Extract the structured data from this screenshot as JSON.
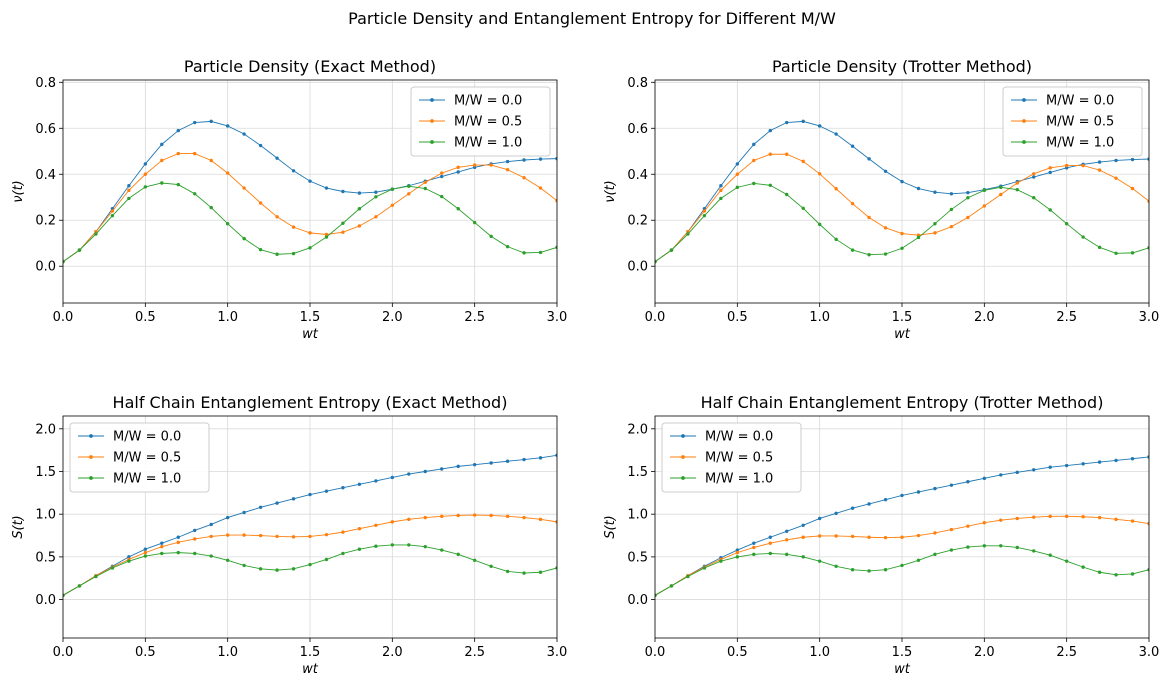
{
  "figure": {
    "suptitle": "Particle Density and Entanglement Entropy for Different M/W"
  },
  "chart_data": [
    {
      "type": "line",
      "title": "Particle Density (Exact Method)",
      "xlabel": "wt",
      "ylabel": "ν(t)",
      "xlim": [
        0,
        3.0
      ],
      "ylim": [
        -0.16,
        0.81
      ],
      "xticks": [
        "0.0",
        "0.5",
        "1.0",
        "1.5",
        "2.0",
        "2.5",
        "3.0"
      ],
      "yticks": [
        "0.0",
        "0.2",
        "0.4",
        "0.6",
        "0.8"
      ],
      "grid": true,
      "legend": "top-right",
      "x": [
        0,
        0.1,
        0.2,
        0.3,
        0.4,
        0.5,
        0.6,
        0.7,
        0.8,
        0.9,
        1.0,
        1.1,
        1.2,
        1.3,
        1.4,
        1.5,
        1.6,
        1.7,
        1.8,
        1.9,
        2.0,
        2.1,
        2.2,
        2.3,
        2.4,
        2.5,
        2.6,
        2.7,
        2.8,
        2.9,
        3.0
      ],
      "series": [
        {
          "name": "M/W = 0.0",
          "color": "#1f77b4",
          "values": [
            0.02,
            0.07,
            0.15,
            0.25,
            0.35,
            0.445,
            0.53,
            0.59,
            0.625,
            0.63,
            0.61,
            0.575,
            0.525,
            0.47,
            0.415,
            0.37,
            0.34,
            0.325,
            0.318,
            0.322,
            0.335,
            0.35,
            0.37,
            0.39,
            0.41,
            0.43,
            0.445,
            0.455,
            0.462,
            0.466,
            0.468
          ]
        },
        {
          "name": "M/W = 0.5",
          "color": "#ff7f0e",
          "values": [
            0.02,
            0.07,
            0.15,
            0.24,
            0.33,
            0.4,
            0.46,
            0.49,
            0.49,
            0.46,
            0.405,
            0.34,
            0.275,
            0.215,
            0.17,
            0.145,
            0.138,
            0.148,
            0.175,
            0.215,
            0.265,
            0.315,
            0.365,
            0.405,
            0.43,
            0.44,
            0.44,
            0.42,
            0.385,
            0.34,
            0.285
          ]
        },
        {
          "name": "M/W = 1.0",
          "color": "#2ca02c",
          "values": [
            0.02,
            0.07,
            0.14,
            0.22,
            0.295,
            0.345,
            0.362,
            0.355,
            0.315,
            0.255,
            0.185,
            0.12,
            0.072,
            0.052,
            0.055,
            0.08,
            0.127,
            0.187,
            0.25,
            0.302,
            0.335,
            0.348,
            0.338,
            0.303,
            0.25,
            0.19,
            0.13,
            0.085,
            0.058,
            0.06,
            0.082
          ]
        }
      ]
    },
    {
      "type": "line",
      "title": "Particle Density (Trotter Method)",
      "xlabel": "wt",
      "ylabel": "ν(t)",
      "xlim": [
        0,
        3.0
      ],
      "ylim": [
        -0.16,
        0.81
      ],
      "xticks": [
        "0.0",
        "0.5",
        "1.0",
        "1.5",
        "2.0",
        "2.5",
        "3.0"
      ],
      "yticks": [
        "0.0",
        "0.2",
        "0.4",
        "0.6",
        "0.8"
      ],
      "grid": true,
      "legend": "top-right",
      "x": [
        0,
        0.1,
        0.2,
        0.3,
        0.4,
        0.5,
        0.6,
        0.7,
        0.8,
        0.9,
        1.0,
        1.1,
        1.2,
        1.3,
        1.4,
        1.5,
        1.6,
        1.7,
        1.8,
        1.9,
        2.0,
        2.1,
        2.2,
        2.3,
        2.4,
        2.5,
        2.6,
        2.7,
        2.8,
        2.9,
        3.0
      ],
      "series": [
        {
          "name": "M/W = 0.0",
          "color": "#1f77b4",
          "values": [
            0.02,
            0.07,
            0.15,
            0.25,
            0.35,
            0.445,
            0.53,
            0.59,
            0.625,
            0.63,
            0.61,
            0.575,
            0.522,
            0.467,
            0.413,
            0.368,
            0.338,
            0.322,
            0.315,
            0.32,
            0.333,
            0.348,
            0.368,
            0.388,
            0.408,
            0.428,
            0.443,
            0.453,
            0.46,
            0.464,
            0.466
          ]
        },
        {
          "name": "M/W = 0.5",
          "color": "#ff7f0e",
          "values": [
            0.02,
            0.07,
            0.15,
            0.24,
            0.33,
            0.4,
            0.46,
            0.487,
            0.487,
            0.456,
            0.402,
            0.337,
            0.272,
            0.212,
            0.167,
            0.142,
            0.135,
            0.145,
            0.172,
            0.212,
            0.262,
            0.312,
            0.362,
            0.402,
            0.428,
            0.438,
            0.438,
            0.418,
            0.383,
            0.338,
            0.283
          ]
        },
        {
          "name": "M/W = 1.0",
          "color": "#2ca02c",
          "values": [
            0.02,
            0.07,
            0.14,
            0.22,
            0.295,
            0.343,
            0.36,
            0.352,
            0.312,
            0.252,
            0.182,
            0.117,
            0.07,
            0.05,
            0.053,
            0.078,
            0.125,
            0.185,
            0.247,
            0.298,
            0.33,
            0.343,
            0.333,
            0.298,
            0.245,
            0.185,
            0.127,
            0.082,
            0.056,
            0.058,
            0.08
          ]
        }
      ]
    },
    {
      "type": "line",
      "title": "Half Chain Entanglement Entropy (Exact Method)",
      "xlabel": "wt",
      "ylabel": "S(t)",
      "xlim": [
        0,
        3.0
      ],
      "ylim": [
        -0.45,
        2.15
      ],
      "xticks": [
        "0.0",
        "0.5",
        "1.0",
        "1.5",
        "2.0",
        "2.5",
        "3.0"
      ],
      "yticks": [
        "0.0",
        "0.5",
        "1.0",
        "1.5",
        "2.0"
      ],
      "grid": true,
      "legend": "top-left",
      "x": [
        0,
        0.1,
        0.2,
        0.3,
        0.4,
        0.5,
        0.6,
        0.7,
        0.8,
        0.9,
        1.0,
        1.1,
        1.2,
        1.3,
        1.4,
        1.5,
        1.6,
        1.7,
        1.8,
        1.9,
        2.0,
        2.1,
        2.2,
        2.3,
        2.4,
        2.5,
        2.6,
        2.7,
        2.8,
        2.9,
        3.0
      ],
      "series": [
        {
          "name": "M/W = 0.0",
          "color": "#1f77b4",
          "values": [
            0.05,
            0.16,
            0.28,
            0.39,
            0.5,
            0.59,
            0.66,
            0.73,
            0.81,
            0.88,
            0.96,
            1.02,
            1.08,
            1.13,
            1.18,
            1.23,
            1.27,
            1.31,
            1.35,
            1.39,
            1.43,
            1.47,
            1.5,
            1.53,
            1.56,
            1.58,
            1.6,
            1.62,
            1.64,
            1.66,
            1.69
          ]
        },
        {
          "name": "M/W = 0.5",
          "color": "#ff7f0e",
          "values": [
            0.05,
            0.16,
            0.28,
            0.38,
            0.47,
            0.55,
            0.62,
            0.67,
            0.71,
            0.74,
            0.755,
            0.755,
            0.75,
            0.74,
            0.735,
            0.74,
            0.76,
            0.79,
            0.83,
            0.87,
            0.91,
            0.94,
            0.96,
            0.975,
            0.985,
            0.99,
            0.985,
            0.975,
            0.96,
            0.94,
            0.91
          ]
        },
        {
          "name": "M/W = 1.0",
          "color": "#2ca02c",
          "values": [
            0.05,
            0.16,
            0.27,
            0.37,
            0.45,
            0.51,
            0.54,
            0.55,
            0.54,
            0.51,
            0.46,
            0.4,
            0.36,
            0.345,
            0.36,
            0.41,
            0.47,
            0.54,
            0.59,
            0.625,
            0.64,
            0.64,
            0.62,
            0.58,
            0.53,
            0.46,
            0.39,
            0.33,
            0.31,
            0.32,
            0.37
          ]
        }
      ]
    },
    {
      "type": "line",
      "title": "Half Chain Entanglement Entropy (Trotter Method)",
      "xlabel": "wt",
      "ylabel": "S(t)",
      "xlim": [
        0,
        3.0
      ],
      "ylim": [
        -0.45,
        2.15
      ],
      "xticks": [
        "0.0",
        "0.5",
        "1.0",
        "1.5",
        "2.0",
        "2.5",
        "3.0"
      ],
      "yticks": [
        "0.0",
        "0.5",
        "1.0",
        "1.5",
        "2.0"
      ],
      "grid": true,
      "legend": "top-left",
      "x": [
        0,
        0.1,
        0.2,
        0.3,
        0.4,
        0.5,
        0.6,
        0.7,
        0.8,
        0.9,
        1.0,
        1.1,
        1.2,
        1.3,
        1.4,
        1.5,
        1.6,
        1.7,
        1.8,
        1.9,
        2.0,
        2.1,
        2.2,
        2.3,
        2.4,
        2.5,
        2.6,
        2.7,
        2.8,
        2.9,
        3.0
      ],
      "series": [
        {
          "name": "M/W = 0.0",
          "color": "#1f77b4",
          "values": [
            0.05,
            0.16,
            0.28,
            0.39,
            0.49,
            0.58,
            0.66,
            0.73,
            0.8,
            0.87,
            0.95,
            1.01,
            1.07,
            1.12,
            1.17,
            1.22,
            1.26,
            1.3,
            1.34,
            1.38,
            1.42,
            1.46,
            1.49,
            1.52,
            1.55,
            1.57,
            1.59,
            1.61,
            1.63,
            1.65,
            1.67
          ]
        },
        {
          "name": "M/W = 0.5",
          "color": "#ff7f0e",
          "values": [
            0.05,
            0.16,
            0.28,
            0.38,
            0.47,
            0.55,
            0.61,
            0.66,
            0.7,
            0.73,
            0.745,
            0.745,
            0.74,
            0.73,
            0.725,
            0.73,
            0.75,
            0.78,
            0.82,
            0.86,
            0.9,
            0.93,
            0.95,
            0.965,
            0.975,
            0.975,
            0.97,
            0.96,
            0.94,
            0.92,
            0.89
          ]
        },
        {
          "name": "M/W = 1.0",
          "color": "#2ca02c",
          "values": [
            0.05,
            0.16,
            0.27,
            0.37,
            0.45,
            0.5,
            0.53,
            0.54,
            0.53,
            0.5,
            0.45,
            0.39,
            0.35,
            0.335,
            0.35,
            0.4,
            0.46,
            0.53,
            0.58,
            0.615,
            0.63,
            0.63,
            0.61,
            0.57,
            0.52,
            0.45,
            0.38,
            0.32,
            0.29,
            0.3,
            0.35
          ]
        }
      ]
    }
  ]
}
